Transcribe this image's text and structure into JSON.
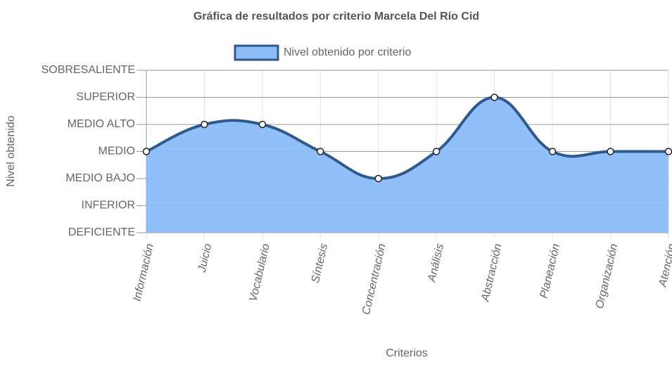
{
  "chart_data": {
    "type": "line",
    "title": "Gráfica de resultados por criterio Marcela Del Río Cid",
    "x_label": "Criterios",
    "y_label": "Nivel obtenido",
    "categories": [
      "Información",
      "Juicio",
      "Vocabulario",
      "Síntesis",
      "Concentración",
      "Análisis",
      "Abstracción",
      "Planeación",
      "Organización",
      "Atención"
    ],
    "series": [
      {
        "name": "Nivel obtenido por criterio",
        "color": "#2f5a8f",
        "fill": "#8bbcf7",
        "values": [
          4,
          5,
          5,
          4,
          3,
          4,
          6,
          4,
          4,
          4
        ]
      }
    ],
    "ylim": [
      1,
      7
    ],
    "yticks": [
      {
        "value": 1,
        "label": "DEFICIENTE"
      },
      {
        "value": 2,
        "label": "INFERIOR"
      },
      {
        "value": 3,
        "label": "MEDIO BAJO"
      },
      {
        "value": 4,
        "label": "MEDIO"
      },
      {
        "value": 5,
        "label": "MEDIO ALTO"
      },
      {
        "value": 6,
        "label": "SUPERIOR"
      },
      {
        "value": 7,
        "label": "SOBRESALIENTE"
      }
    ],
    "grid": true,
    "legend": "top"
  }
}
